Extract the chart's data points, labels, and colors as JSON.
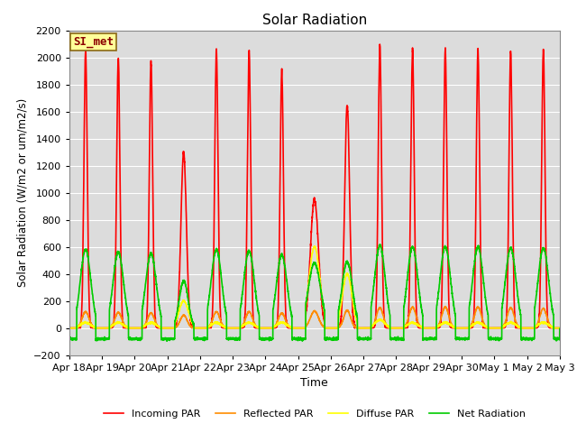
{
  "title": "Solar Radiation",
  "xlabel": "Time",
  "ylabel": "Solar Radiation (W/m2 or um/m2/s)",
  "ylim": [
    -200,
    2200
  ],
  "yticks": [
    -200,
    0,
    200,
    400,
    600,
    800,
    1000,
    1200,
    1400,
    1600,
    1800,
    2000,
    2200
  ],
  "xtick_labels": [
    "Apr 18",
    "Apr 19",
    "Apr 20",
    "Apr 21",
    "Apr 22",
    "Apr 23",
    "Apr 24",
    "Apr 25",
    "Apr 26",
    "Apr 27",
    "Apr 28",
    "Apr 29",
    "Apr 30",
    "May 1",
    "May 2",
    "May 3"
  ],
  "annotation_text": "SI_met",
  "annotation_color": "#8B0000",
  "annotation_bg": "#FFFF99",
  "annotation_border": "#8B6914",
  "series_colors": {
    "incoming": "#FF0000",
    "reflected": "#FF8C00",
    "diffuse": "#FFFF00",
    "net": "#00CC00"
  },
  "series_labels": {
    "incoming": "Incoming PAR",
    "reflected": "Reflected PAR",
    "diffuse": "Diffuse PAR",
    "net": "Net Radiation"
  },
  "plot_bg": "#DCDCDC",
  "fig_bg": "#FFFFFF",
  "line_width": 1.2,
  "figsize": [
    6.4,
    4.8
  ],
  "dpi": 100
}
